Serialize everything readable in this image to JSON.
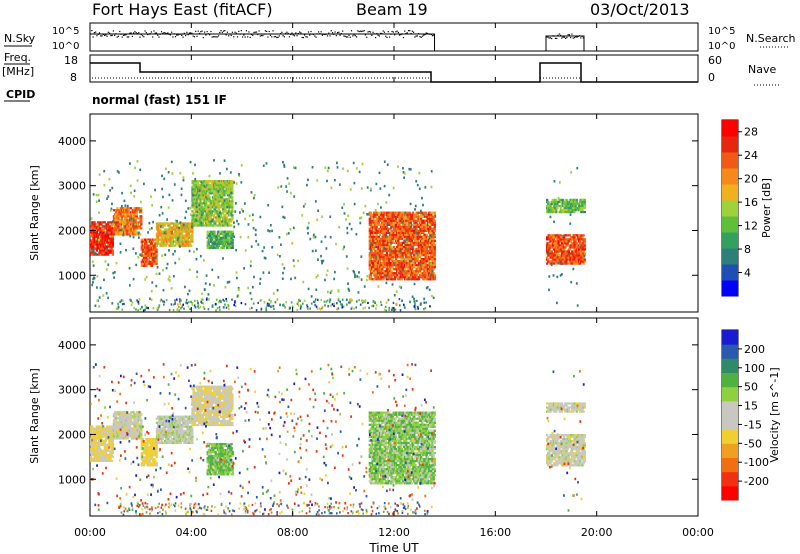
{
  "header": {
    "radar": "Fort Hays East (fitACF)",
    "beam": "Beam 19",
    "date": "03/Oct/2013"
  },
  "param_labels": {
    "nsky": "N.Sky",
    "nsearch": "N.Search",
    "freq_line1": "Freq.",
    "freq_line2": "[MHz]",
    "nave": "Nave",
    "cpid": "CPID",
    "cpid_value": "normal (fast) 151 IF"
  },
  "param_ticks": {
    "noise_left": [
      "10^5",
      "10^0"
    ],
    "noise_right": [
      "10^5",
      "10^0"
    ],
    "freq_left": [
      "18",
      "8"
    ],
    "nave_right": [
      "60",
      "0"
    ]
  },
  "chart_data": [
    {
      "type": "heatmap",
      "panel": "power",
      "ylabel": "Slant Range [km]",
      "xlabel": "",
      "xlim": [
        "00:00",
        "24:00"
      ],
      "ylim": [
        180,
        4600
      ],
      "yticks": [
        1000,
        2000,
        3000,
        4000
      ],
      "colorbar": {
        "label": "Power [dB]",
        "ticks": [
          4,
          8,
          12,
          16,
          20,
          24,
          28
        ],
        "range": [
          0,
          30
        ],
        "colors": [
          "#0000ff",
          "#1f4fb4",
          "#2e7f7a",
          "#34a060",
          "#5fbf3a",
          "#9fd23a",
          "#f0b020",
          "#f58a1a",
          "#f05a14",
          "#e8250f",
          "#ff0000"
        ]
      },
      "scatter_regions": [
        {
          "hours": [
            0.0,
            0.9
          ],
          "range_km": [
            1450,
            2200
          ],
          "level": 27
        },
        {
          "hours": [
            0.9,
            2.0
          ],
          "range_km": [
            1900,
            2500
          ],
          "level": 22
        },
        {
          "hours": [
            2.0,
            2.6
          ],
          "range_km": [
            1200,
            1800
          ],
          "level": 24
        },
        {
          "hours": [
            2.6,
            4.0
          ],
          "range_km": [
            1650,
            2150
          ],
          "level": 18
        },
        {
          "hours": [
            4.0,
            5.6
          ],
          "range_km": [
            2100,
            3100
          ],
          "level": 14
        },
        {
          "hours": [
            4.6,
            5.6
          ],
          "range_km": [
            1600,
            2000
          ],
          "level": 11
        },
        {
          "hours": [
            11.0,
            13.6
          ],
          "range_km": [
            900,
            2400
          ],
          "level": 24
        },
        {
          "hours": [
            18.0,
            19.5
          ],
          "range_km": [
            1250,
            1900
          ],
          "level": 25
        },
        {
          "hours": [
            18.0,
            19.5
          ],
          "range_km": [
            2400,
            2700
          ],
          "level": 12
        }
      ]
    },
    {
      "type": "heatmap",
      "panel": "velocity",
      "ylabel": "Slant Range [km]",
      "xlabel": "Time UT",
      "xlim": [
        "00:00",
        "24:00"
      ],
      "ylim": [
        180,
        4600
      ],
      "yticks": [
        1000,
        2000,
        3000,
        4000
      ],
      "xticks": [
        "00:00",
        "04:00",
        "08:00",
        "12:00",
        "16:00",
        "20:00",
        "00:00"
      ],
      "colorbar": {
        "label": "Velocity [m s^-1]",
        "ticks": [
          "200",
          "100",
          "50",
          "15",
          "-15",
          "-50",
          "-100",
          "-200"
        ],
        "colors": [
          "#1a1ad0",
          "#2a5ab0",
          "#2f8a6a",
          "#50b040",
          "#8fd040",
          "#c8c8c0",
          "#c8c8c0",
          "#f0d030",
          "#f0a020",
          "#f07010",
          "#f03010",
          "#ff0000"
        ]
      },
      "scatter_regions": [
        {
          "hours": [
            0.0,
            0.9
          ],
          "range_km": [
            1400,
            2200
          ],
          "velocity": -20
        },
        {
          "hours": [
            0.9,
            2.0
          ],
          "range_km": [
            1900,
            2500
          ],
          "velocity": 0
        },
        {
          "hours": [
            2.0,
            2.6
          ],
          "range_km": [
            1300,
            1900
          ],
          "velocity": -30
        },
        {
          "hours": [
            2.6,
            4.0
          ],
          "range_km": [
            1800,
            2400
          ],
          "velocity": 5
        },
        {
          "hours": [
            4.0,
            5.6
          ],
          "range_km": [
            2200,
            3100
          ],
          "velocity": -10
        },
        {
          "hours": [
            4.6,
            5.6
          ],
          "range_km": [
            1100,
            1800
          ],
          "velocity": 30
        },
        {
          "hours": [
            11.0,
            13.6
          ],
          "range_km": [
            900,
            2500
          ],
          "velocity": 25
        },
        {
          "hours": [
            18.0,
            19.5
          ],
          "range_km": [
            1300,
            2000
          ],
          "velocity": 0
        },
        {
          "hours": [
            18.0,
            19.5
          ],
          "range_km": [
            2500,
            2700
          ],
          "velocity": 0
        }
      ]
    }
  ],
  "axis_ticks": {
    "range": [
      "1000",
      "2000",
      "3000",
      "4000"
    ],
    "time": [
      "00:00",
      "04:00",
      "08:00",
      "12:00",
      "16:00",
      "20:00",
      "00:00"
    ],
    "time_label": "Time UT"
  }
}
